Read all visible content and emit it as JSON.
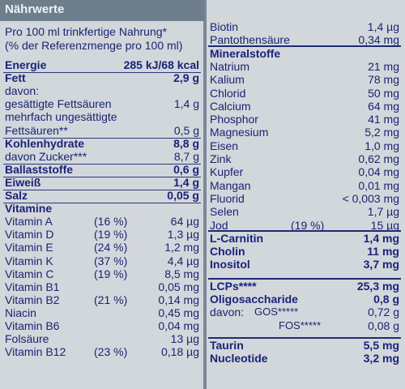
{
  "header": {
    "title": "Nährwerte"
  },
  "intro": {
    "line1": "Pro 100 ml trinkfertige Nahrung*",
    "line2": "(% der Referenzmenge pro 100 ml)"
  },
  "left": [
    {
      "name": "Energie",
      "value": "285 kJ/68 kcal",
      "bold": true
    },
    {
      "name": "Fett",
      "value": "2,9 g",
      "bold": true
    },
    {
      "name": "davon:",
      "value": ""
    },
    {
      "name": "gesättigte Fettsäuren",
      "value": "1,4 g"
    },
    {
      "name": "mehrfach ungesättigte",
      "value": ""
    },
    {
      "name": "Fettsäuren**",
      "value": "0,5 g"
    },
    {
      "name": "Kohlenhydrate",
      "value": "8,8 g",
      "bold": true
    },
    {
      "name": "davon Zucker***",
      "value": "8,7 g"
    },
    {
      "name": "Ballaststoffe",
      "value": "0,6 g",
      "bold": true
    },
    {
      "name": "Eiweiß",
      "value": "1,4 g",
      "bold": true
    },
    {
      "name": "Salz",
      "value": "0,05 g",
      "bold": true
    },
    {
      "name": "Vitamine",
      "value": "",
      "bold": true
    },
    {
      "name": "Vitamin A",
      "pct": "(16 %)",
      "value": "64 µg"
    },
    {
      "name": "Vitamin D",
      "pct": "(19 %)",
      "value": "1,3 µg"
    },
    {
      "name": "Vitamin E",
      "pct": "(24 %)",
      "value": "1,2 mg"
    },
    {
      "name": "Vitamin K",
      "pct": "(37 %)",
      "value": "4,4 µg"
    },
    {
      "name": "Vitamin C",
      "pct": "(19 %)",
      "value": "8,5 mg"
    },
    {
      "name": "Vitamin B1",
      "pct": "",
      "value": "0,05 mg"
    },
    {
      "name": "Vitamin B2",
      "pct": "(21 %)",
      "value": "0,14 mg"
    },
    {
      "name": "Niacin",
      "pct": "",
      "value": "0,45 mg"
    },
    {
      "name": "Vitamin B6",
      "pct": "",
      "value": "0,04 mg"
    },
    {
      "name": "Folsäure",
      "pct": "",
      "value": "13 µg"
    },
    {
      "name": "Vitamin B12",
      "pct": "(23 %)",
      "value": "0,18 µg"
    }
  ],
  "right": [
    {
      "name": "Biotin",
      "value": "1,4 µg"
    },
    {
      "name": "Pantothensäure",
      "value": "0,34 mg"
    },
    {
      "name": "Mineralstoffe",
      "value": "",
      "bold": true
    },
    {
      "name": "Natrium",
      "value": "21 mg"
    },
    {
      "name": "Kalium",
      "value": "78 mg"
    },
    {
      "name": "Chlorid",
      "value": "50 mg"
    },
    {
      "name": "Calcium",
      "value": "64 mg"
    },
    {
      "name": "Phosphor",
      "value": "41 mg"
    },
    {
      "name": "Magnesium",
      "value": "5,2 mg"
    },
    {
      "name": "Eisen",
      "value": "1,0 mg"
    },
    {
      "name": "Zink",
      "value": "0,62 mg"
    },
    {
      "name": "Kupfer",
      "value": "0,04 mg"
    },
    {
      "name": "Mangan",
      "value": "0,01 mg"
    },
    {
      "name": "Fluorid",
      "value": "< 0,003 mg"
    },
    {
      "name": "Selen",
      "value": "1,7 µg"
    },
    {
      "name": "Jod",
      "pct": "(19 %)",
      "value": "15 µg"
    },
    {
      "name": "L-Carnitin",
      "value": "1,4 mg",
      "bold": true
    },
    {
      "name": "Cholin",
      "value": "11 mg",
      "bold": true
    },
    {
      "name": "Inositol",
      "value": "3,7 mg",
      "bold": true
    },
    {
      "name": "LCPs****",
      "value": "25,3 mg",
      "bold": true
    },
    {
      "name": "Oligosaccharide",
      "value": "0,8 g",
      "bold": true
    },
    {
      "name": "davon:",
      "sub": "GOS*****",
      "value": "0,72 g"
    },
    {
      "name": "",
      "sub": "FOS*****",
      "value": "0,08 g"
    },
    {
      "name": "Taurin",
      "value": "5,5 mg",
      "bold": true
    },
    {
      "name": "Nucleotide",
      "value": "3,2 mg",
      "bold": true
    }
  ]
}
